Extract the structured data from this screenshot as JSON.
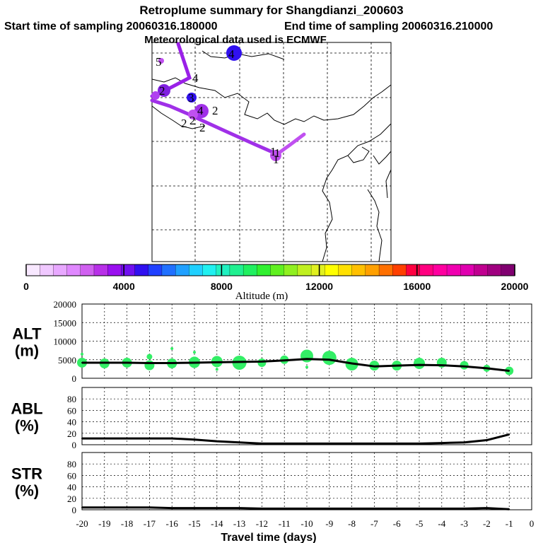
{
  "header": {
    "title": "Retroplume summary for Shangdianzi_200603",
    "start_label": "Start time of sampling 20060316.180000",
    "end_label": "End time of sampling 20060316.210000",
    "met_label": "Meteorological data used is ECMWF"
  },
  "map": {
    "markers": [
      "5",
      "4",
      "4",
      "2",
      "3",
      "4",
      "2",
      "2",
      "2",
      "2",
      "1",
      "1",
      "1"
    ]
  },
  "colorbar": {
    "ticks": [
      "0",
      "4000",
      "8000",
      "12000",
      "16000",
      "20000"
    ],
    "label": "Altitude (m)",
    "colors": [
      "#f8e8ff",
      "#f0c8ff",
      "#e8a8ff",
      "#e088ff",
      "#d060f0",
      "#b830e8",
      "#9a10f0",
      "#7010f0",
      "#3010f0",
      "#2040ff",
      "#2070ff",
      "#20a0ff",
      "#20d0ff",
      "#20f0f0",
      "#20f0c0",
      "#20f090",
      "#20f060",
      "#30f030",
      "#60f020",
      "#90f020",
      "#c0f020",
      "#e0f020",
      "#ffff00",
      "#ffe000",
      "#ffc000",
      "#ffa000",
      "#ff7000",
      "#ff4000",
      "#ff0040",
      "#ff0080",
      "#ff00a0",
      "#f000b0",
      "#e000b0",
      "#c00090",
      "#a00080",
      "#800070"
    ]
  },
  "chart_data": [
    {
      "type": "line",
      "title": "ALT",
      "ylabel": "ALT (m)",
      "ylabel_line1": "ALT",
      "ylabel_line2": "(m)",
      "ylim": [
        0,
        20000
      ],
      "yticks": [
        "0",
        "5000",
        "10000",
        "15000",
        "20000"
      ],
      "x": [
        -20,
        -19,
        -18,
        -17,
        -16,
        -15,
        -14,
        -13,
        -12,
        -11,
        -10,
        -9,
        -8,
        -7,
        -6,
        -5,
        -4,
        -3,
        -2,
        -1
      ],
      "values": [
        4200,
        4200,
        4200,
        4100,
        4100,
        4200,
        4300,
        4400,
        4500,
        4800,
        5200,
        5000,
        4000,
        3200,
        3400,
        3600,
        3500,
        3200,
        2700,
        2000
      ],
      "blobs": [
        {
          "x": -20,
          "y": 4200,
          "r": 7
        },
        {
          "x": -20,
          "y": 6500,
          "r": 2
        },
        {
          "x": -19,
          "y": 4000,
          "r": 7
        },
        {
          "x": -18,
          "y": 4200,
          "r": 7
        },
        {
          "x": -17,
          "y": 3500,
          "r": 7
        },
        {
          "x": -17,
          "y": 5800,
          "r": 4
        },
        {
          "x": -16,
          "y": 4000,
          "r": 7
        },
        {
          "x": -16,
          "y": 8000,
          "r": 2
        },
        {
          "x": -15,
          "y": 4300,
          "r": 8
        },
        {
          "x": -15,
          "y": 7000,
          "r": 2
        },
        {
          "x": -14,
          "y": 4500,
          "r": 8
        },
        {
          "x": -14,
          "y": 2400,
          "r": 2
        },
        {
          "x": -13,
          "y": 4200,
          "r": 10
        },
        {
          "x": -12,
          "y": 4200,
          "r": 6
        },
        {
          "x": -12,
          "y": 7500,
          "r": 1
        },
        {
          "x": -11,
          "y": 5000,
          "r": 6
        },
        {
          "x": -10,
          "y": 6000,
          "r": 9
        },
        {
          "x": -10,
          "y": 3000,
          "r": 2
        },
        {
          "x": -9,
          "y": 5500,
          "r": 10
        },
        {
          "x": -8,
          "y": 3800,
          "r": 9
        },
        {
          "x": -7,
          "y": 3400,
          "r": 7
        },
        {
          "x": -6,
          "y": 3400,
          "r": 7
        },
        {
          "x": -5,
          "y": 4000,
          "r": 8
        },
        {
          "x": -4,
          "y": 4200,
          "r": 7
        },
        {
          "x": -3,
          "y": 3500,
          "r": 6
        },
        {
          "x": -2,
          "y": 2700,
          "r": 5
        },
        {
          "x": -1,
          "y": 2000,
          "r": 6
        }
      ]
    },
    {
      "type": "line",
      "title": "ABL",
      "ylabel": "ABL (%)",
      "ylabel_line1": "ABL",
      "ylabel_line2": "(%)",
      "ylim": [
        0,
        100
      ],
      "yticks": [
        "0",
        "20",
        "40",
        "60",
        "80"
      ],
      "x": [
        -20,
        -19,
        -18,
        -17,
        -16,
        -15,
        -14,
        -13,
        -12,
        -11,
        -10,
        -9,
        -8,
        -7,
        -6,
        -5,
        -4,
        -3,
        -2,
        -1
      ],
      "values": [
        11,
        11,
        11,
        11,
        11,
        9,
        6,
        4,
        2,
        2,
        2,
        2,
        2,
        2,
        2,
        2,
        3,
        4,
        8,
        18
      ]
    },
    {
      "type": "line",
      "title": "STR",
      "ylabel": "STR (%)",
      "ylabel_line1": "STR",
      "ylabel_line2": "(%)",
      "ylim": [
        0,
        100
      ],
      "yticks": [
        "0",
        "20",
        "40",
        "60",
        "80"
      ],
      "x": [
        -20,
        -19,
        -18,
        -17,
        -16,
        -15,
        -14,
        -13,
        -12,
        -11,
        -10,
        -9,
        -8,
        -7,
        -6,
        -5,
        -4,
        -3,
        -2,
        -1
      ],
      "values": [
        4,
        4,
        4,
        4,
        3,
        3,
        3,
        3,
        2,
        2,
        2,
        2,
        2,
        2,
        2,
        2,
        2,
        2,
        3,
        1
      ],
      "xticks": [
        "-20",
        "-19",
        "-18",
        "-17",
        "-16",
        "-15",
        "-14",
        "-13",
        "-12",
        "-11",
        "-10",
        "-9",
        "-8",
        "-7",
        "-6",
        "-5",
        "-4",
        "-3",
        "-2",
        "-1",
        "0"
      ],
      "xlabel": "Travel time (days)"
    }
  ]
}
